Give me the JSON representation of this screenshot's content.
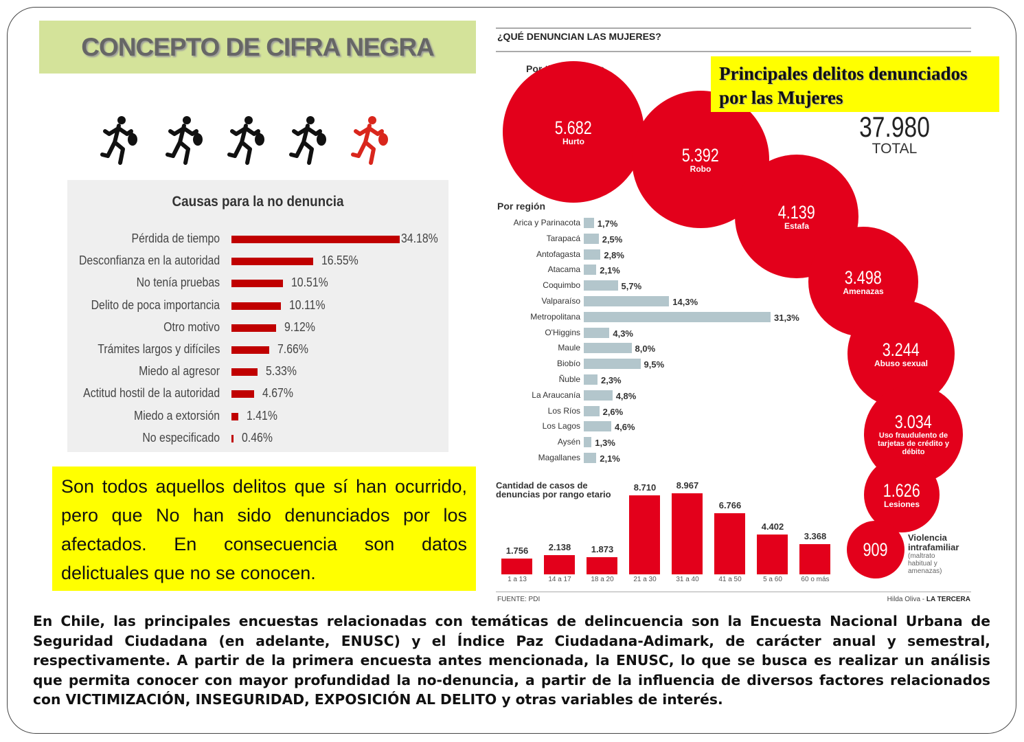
{
  "slide_title": "CONCEPTO DE CIFRA NEGRA",
  "colors": {
    "title_bg": "#d4e39a",
    "highlight": "#ffff00",
    "bar_red": "#c00000",
    "bubble_red": "#e3001b",
    "region_bar": "#b3c6cc"
  },
  "runners": {
    "icon": "running-thief-icon",
    "count": 5,
    "highlighted_index": 4,
    "highlight_color": "#d9261c"
  },
  "definition": "Son todos aquellos delitos que sí han ocurrido, pero que No han sido denunciados por los afectados. En consecuencia son datos delictuales que no se conocen.",
  "infographic": {
    "heading": "¿QUÉ DENUNCIAN LAS MUJERES?",
    "callout": "Principales delitos denunciados por las Mujeres",
    "total_value": "37.980",
    "total_label": "TOTAL",
    "source": "FUENTE: PDI",
    "credit_author": "Hilda Oliva - ",
    "credit_paper": "LA TERCERA",
    "vif_note": "(maltrato habitual y amenazas)"
  },
  "bottom_text": "En Chile, las principales encuestas relacionadas con temáticas de delincuencia son la Encuesta Nacional Urbana de Seguridad Ciudadana (en adelante, ENUSC) y el Índice Paz Ciudadana-Adimark, de carácter anual y semestral, respectivamente. A partir de la primera encuesta antes mencionada, la ENUSC, lo que se busca es realizar un análisis que permita conocer con mayor profundidad la no-denuncia, a partir de la influencia de diversos factores relacionados con VICTIMIZACIÓN, INSEGURIDAD, EXPOSICIÓN AL DELITO y otras variables de interés.",
  "chart_data": [
    {
      "type": "bar",
      "orientation": "horizontal",
      "title": "Causas para la no denuncia",
      "categories": [
        "Pérdida de tiempo",
        "Desconfianza en la autoridad",
        "No tenía pruebas",
        "Delito de poca importancia",
        "Otro motivo",
        "Trámites largos y difíciles",
        "Miedo al agresor",
        "Actitud hostil de la autoridad",
        "Miedo a  extorsión",
        "No especificado"
      ],
      "values": [
        34.18,
        16.55,
        10.51,
        10.11,
        9.12,
        7.66,
        5.33,
        4.67,
        1.41,
        0.46
      ],
      "labels": [
        "34.18%",
        "16.55%",
        "10.51%",
        "10.11%",
        "9.12%",
        "7.66%",
        "5.33%",
        "4.67%",
        "1.41%",
        "0.46%"
      ],
      "color": "#c00000"
    },
    {
      "type": "bubble",
      "title": "Por tipo de delito",
      "categories": [
        "Hurto",
        "Robo",
        "Estafa",
        "Amenazas",
        "Abuso sexual",
        "Uso fraudulento de tarjetas de crédito y débito",
        "Lesiones",
        "Violencia intrafamiliar"
      ],
      "values": [
        5682,
        5392,
        4139,
        3498,
        3244,
        3034,
        1626,
        909
      ],
      "labels": [
        "5.682",
        "5.392",
        "4.139",
        "3.498",
        "3.244",
        "3.034",
        "1.626",
        "909"
      ]
    },
    {
      "type": "bar",
      "orientation": "horizontal",
      "title": "Por región",
      "categories": [
        "Arica y Parinacota",
        "Tarapacá",
        "Antofagasta",
        "Atacama",
        "Coquimbo",
        "Valparaíso",
        "Metropolitana",
        "O'Higgins",
        "Maule",
        "Biobío",
        "Ñuble",
        "La Araucanía",
        "Los Ríos",
        "Los Lagos",
        "Aysén",
        "Magallanes"
      ],
      "values": [
        1.7,
        2.5,
        2.8,
        2.1,
        5.7,
        14.3,
        31.3,
        4.3,
        8.0,
        9.5,
        2.3,
        4.8,
        2.6,
        4.6,
        1.3,
        2.1
      ],
      "labels": [
        "1,7%",
        "2,5%",
        "2,8%",
        "2,1%",
        "5,7%",
        "14,3%",
        "31,3%",
        "4,3%",
        "8,0%",
        "9,5%",
        "2,3%",
        "4,8%",
        "2,6%",
        "4,6%",
        "1,3%",
        "2,1%"
      ],
      "color": "#b3c6cc"
    },
    {
      "type": "bar",
      "title": "Cantidad de casos de denuncias por rango etario",
      "categories": [
        "1 a 13",
        "14 a 17",
        "18 a 20",
        "21 a 30",
        "31 a 40",
        "41 a 50",
        "5 a 60",
        "60 o más"
      ],
      "values": [
        1756,
        2138,
        1873,
        8710,
        8967,
        6766,
        4402,
        3368
      ],
      "labels": [
        "1.756",
        "2.138",
        "1.873",
        "8.710",
        "8.967",
        "6.766",
        "4.402",
        "3.368"
      ],
      "color": "#e3001b"
    }
  ]
}
